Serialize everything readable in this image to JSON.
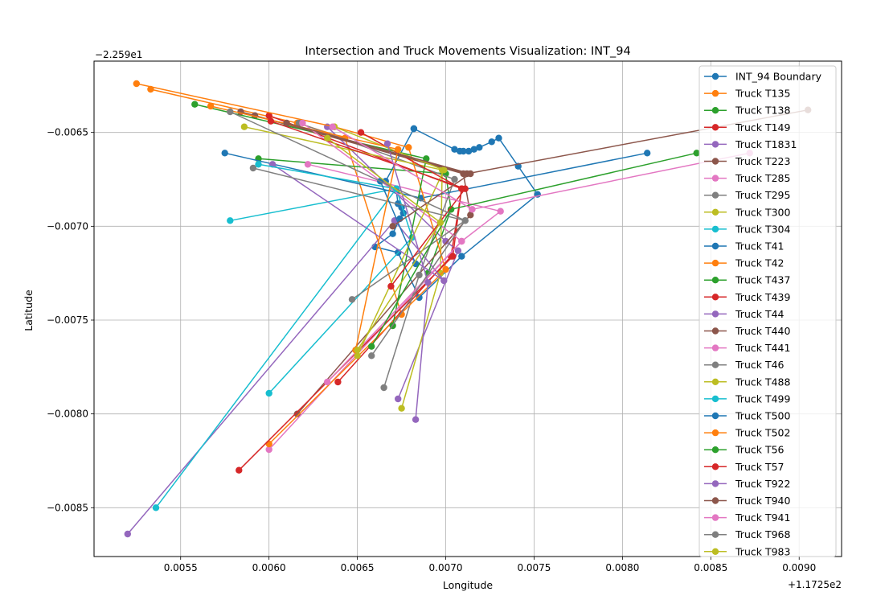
{
  "chart_data": {
    "type": "line",
    "title": "Intersection and Truck Movements Visualization: INT_94",
    "xlabel": "Longitude",
    "ylabel": "Latitude",
    "x_offset_label": "+1.1725e2",
    "y_offset_label": "−2.259e1",
    "xlim": [
      0.00501,
      0.00924
    ],
    "ylim": [
      -0.00876,
      -0.00612
    ],
    "x_ticks": [
      0.0055,
      0.006,
      0.0065,
      0.007,
      0.0075,
      0.008,
      0.0085,
      0.009
    ],
    "x_tick_labels": [
      "0.0055",
      "0.0060",
      "0.0065",
      "0.0070",
      "0.0075",
      "0.0080",
      "0.0085",
      "0.0090"
    ],
    "y_ticks": [
      -0.0065,
      -0.007,
      -0.0075,
      -0.008,
      -0.0085
    ],
    "y_tick_labels": [
      "−0.0065",
      "−0.0070",
      "−0.0075",
      "−0.0080",
      "−0.0085"
    ],
    "grid": true,
    "legend_position": "upper-right",
    "series": [
      {
        "name": "INT_94 Boundary",
        "color": "#1f77b4",
        "points": [
          [
            0.00682,
            -0.00648
          ],
          [
            0.00705,
            -0.00659
          ],
          [
            0.00708,
            -0.0066
          ],
          [
            0.0071,
            -0.0066
          ],
          [
            0.00713,
            -0.0066
          ],
          [
            0.00716,
            -0.00659
          ],
          [
            0.00719,
            -0.00658
          ],
          [
            0.00726,
            -0.00655
          ],
          [
            0.0073,
            -0.00653
          ],
          [
            0.00741,
            -0.00668
          ],
          [
            0.00752,
            -0.00683
          ],
          [
            0.00709,
            -0.00716
          ],
          [
            0.00685,
            -0.00738
          ],
          [
            0.00673,
            -0.00714
          ],
          [
            0.0066,
            -0.00711
          ],
          [
            0.0067,
            -0.00704
          ],
          [
            0.00674,
            -0.00696
          ],
          [
            0.00676,
            -0.00693
          ],
          [
            0.00675,
            -0.0069
          ],
          [
            0.00673,
            -0.00688
          ],
          [
            0.00672,
            -0.00681
          ],
          [
            0.00666,
            -0.00676
          ],
          [
            0.00682,
            -0.00648
          ]
        ]
      },
      {
        "name": "Truck T135",
        "color": "#ff7f0e",
        "points": [
          [
            0.00533,
            -0.00627
          ],
          [
            0.00616,
            -0.00645
          ],
          [
            0.00643,
            -0.00653
          ],
          [
            0.00675,
            -0.00747
          ]
        ]
      },
      {
        "name": "Truck T138",
        "color": "#2ca02c",
        "points": [
          [
            0.00594,
            -0.00664
          ],
          [
            0.007,
            -0.00672
          ],
          [
            0.00703,
            -0.00691
          ],
          [
            0.0069,
            -0.00725
          ]
        ]
      },
      {
        "name": "Truck T149",
        "color": "#d62728",
        "points": [
          [
            0.006,
            -0.00641
          ],
          [
            0.00709,
            -0.0068
          ],
          [
            0.00703,
            -0.00716
          ],
          [
            0.00639,
            -0.00783
          ]
        ]
      },
      {
        "name": "Truck T1831",
        "color": "#9467bd",
        "points": [
          [
            0.00633,
            -0.00647
          ],
          [
            0.007,
            -0.00708
          ],
          [
            0.00707,
            -0.00713
          ],
          [
            0.00673,
            -0.00792
          ]
        ]
      },
      {
        "name": "Truck T223",
        "color": "#8c564b",
        "points": [
          [
            0.00592,
            -0.00641
          ],
          [
            0.0071,
            -0.00672
          ],
          [
            0.00714,
            -0.00694
          ],
          [
            0.00616,
            -0.008
          ]
        ]
      },
      {
        "name": "Truck T285",
        "color": "#e377c2",
        "points": [
          [
            0.00622,
            -0.00667
          ],
          [
            0.00731,
            -0.00692
          ],
          [
            0.00709,
            -0.00708
          ],
          [
            0.006,
            -0.00819
          ]
        ]
      },
      {
        "name": "Truck T295",
        "color": "#7f7f7f",
        "points": [
          [
            0.00617,
            -0.00645
          ],
          [
            0.00705,
            -0.00675
          ],
          [
            0.00685,
            -0.00726
          ],
          [
            0.00665,
            -0.00786
          ]
        ]
      },
      {
        "name": "Truck T300",
        "color": "#bcbd22",
        "points": [
          [
            0.00586,
            -0.00647
          ],
          [
            0.00698,
            -0.0067
          ],
          [
            0.00697,
            -0.00725
          ],
          [
            0.00675,
            -0.00797
          ]
        ]
      },
      {
        "name": "Truck T304",
        "color": "#17becf",
        "points": [
          [
            0.00578,
            -0.00697
          ],
          [
            0.00672,
            -0.0068
          ],
          [
            0.00681,
            -0.00706
          ],
          [
            0.006,
            -0.00789
          ]
        ]
      },
      {
        "name": "Truck T41",
        "color": "#1f77b4",
        "points": [
          [
            0.00575,
            -0.00661
          ],
          [
            0.00686,
            -0.00685
          ],
          [
            0.00814,
            -0.00661
          ]
        ]
      },
      {
        "name": "Truck T42",
        "color": "#ff7f0e",
        "points": [
          [
            0.00525,
            -0.00624
          ],
          [
            0.00637,
            -0.00647
          ],
          [
            0.00679,
            -0.00658
          ],
          [
            0.007,
            -0.00723
          ],
          [
            0.006,
            -0.00816
          ]
        ]
      },
      {
        "name": "Truck T437",
        "color": "#2ca02c",
        "points": [
          [
            0.00558,
            -0.00635
          ],
          [
            0.00689,
            -0.00664
          ],
          [
            0.0067,
            -0.00753
          ]
        ]
      },
      {
        "name": "Truck T439",
        "color": "#d62728",
        "points": [
          [
            0.00652,
            -0.0065
          ],
          [
            0.00709,
            -0.0068
          ],
          [
            0.00704,
            -0.00716
          ],
          [
            0.00583,
            -0.0083
          ]
        ]
      },
      {
        "name": "Truck T44",
        "color": "#9467bd",
        "points": [
          [
            0.00602,
            -0.00667
          ],
          [
            0.00699,
            -0.00729
          ],
          [
            0.00671,
            -0.00697
          ],
          [
            0.0052,
            -0.00864
          ]
        ]
      },
      {
        "name": "Truck T440",
        "color": "#8c564b",
        "points": [
          [
            0.00584,
            -0.00639
          ],
          [
            0.00712,
            -0.00672
          ],
          [
            0.00905,
            -0.00638
          ]
        ]
      },
      {
        "name": "Truck T441",
        "color": "#e377c2",
        "points": [
          [
            0.00619,
            -0.00645
          ],
          [
            0.00709,
            -0.00708
          ],
          [
            0.00633,
            -0.00783
          ]
        ]
      },
      {
        "name": "Truck T46",
        "color": "#7f7f7f",
        "points": [
          [
            0.00591,
            -0.00669
          ],
          [
            0.00711,
            -0.00697
          ],
          [
            0.00647,
            -0.00739
          ]
        ]
      },
      {
        "name": "Truck T488",
        "color": "#bcbd22",
        "points": [
          [
            0.00637,
            -0.00647
          ],
          [
            0.00699,
            -0.0067
          ],
          [
            0.0065,
            -0.00769
          ]
        ]
      },
      {
        "name": "Truck T499",
        "color": "#17becf",
        "points": [
          [
            0.00594,
            -0.00667
          ],
          [
            0.00672,
            -0.0068
          ],
          [
            0.00536,
            -0.0085
          ]
        ]
      },
      {
        "name": "Truck T500",
        "color": "#1f77b4",
        "points": [
          [
            0.00663,
            -0.00676
          ],
          [
            0.00683,
            -0.0072
          ]
        ]
      },
      {
        "name": "Truck T502",
        "color": "#ff7f0e",
        "points": [
          [
            0.00567,
            -0.00636
          ],
          [
            0.00673,
            -0.00659
          ],
          [
            0.00649,
            -0.00766
          ]
        ]
      },
      {
        "name": "Truck T56",
        "color": "#2ca02c",
        "points": [
          [
            0.00842,
            -0.00661
          ],
          [
            0.00703,
            -0.00691
          ],
          [
            0.00658,
            -0.00764
          ]
        ]
      },
      {
        "name": "Truck T57",
        "color": "#d62728",
        "points": [
          [
            0.00601,
            -0.00644
          ],
          [
            0.00711,
            -0.0068
          ],
          [
            0.00669,
            -0.00732
          ]
        ]
      },
      {
        "name": "Truck T922",
        "color": "#9467bd",
        "points": [
          [
            0.00667,
            -0.00656
          ],
          [
            0.0069,
            -0.0073
          ],
          [
            0.00683,
            -0.00803
          ]
        ]
      },
      {
        "name": "Truck T940",
        "color": "#8c564b",
        "points": [
          [
            0.0061,
            -0.00645
          ],
          [
            0.00714,
            -0.00672
          ],
          [
            0.0067,
            -0.007
          ]
        ]
      },
      {
        "name": "Truck T941",
        "color": "#e377c2",
        "points": [
          [
            0.00872,
            -0.00661
          ],
          [
            0.00715,
            -0.00691
          ],
          [
            0.00636,
            -0.00647
          ]
        ]
      },
      {
        "name": "Truck T968",
        "color": "#7f7f7f",
        "points": [
          [
            0.00578,
            -0.00639
          ],
          [
            0.00711,
            -0.00697
          ],
          [
            0.00658,
            -0.00769
          ]
        ]
      },
      {
        "name": "Truck T983",
        "color": "#bcbd22",
        "points": [
          [
            0.00633,
            -0.00653
          ],
          [
            0.00697,
            -0.00698
          ],
          [
            0.0065,
            -0.00766
          ]
        ]
      }
    ]
  }
}
